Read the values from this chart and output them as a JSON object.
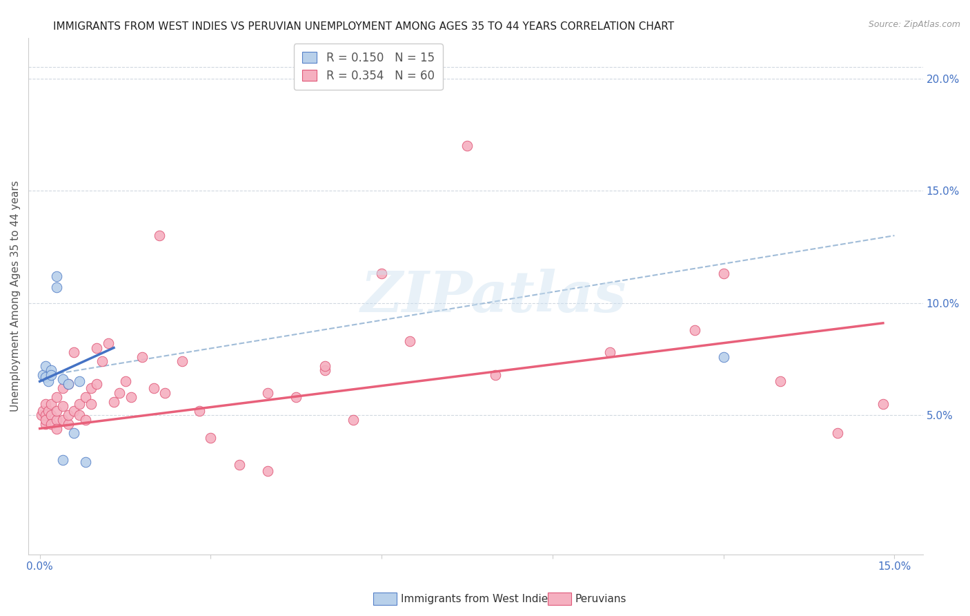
{
  "title": "IMMIGRANTS FROM WEST INDIES VS PERUVIAN UNEMPLOYMENT AMONG AGES 35 TO 44 YEARS CORRELATION CHART",
  "source": "Source: ZipAtlas.com",
  "ylabel": "Unemployment Among Ages 35 to 44 years",
  "ytick_labels": [
    "5.0%",
    "10.0%",
    "15.0%",
    "20.0%"
  ],
  "ytick_vals": [
    0.05,
    0.1,
    0.15,
    0.2
  ],
  "xlim": [
    -0.002,
    0.155
  ],
  "ylim": [
    -0.012,
    0.218
  ],
  "legend_r1": "R = 0.150",
  "legend_n1": "N = 15",
  "legend_r2": "R = 0.354",
  "legend_n2": "N = 60",
  "blue_face": "#b8d0ea",
  "blue_edge": "#5580c8",
  "pink_face": "#f5b0c0",
  "pink_edge": "#e05878",
  "blue_line_color": "#4472c4",
  "pink_line_color": "#e8607a",
  "dash_line_color": "#a0bcd8",
  "west_indies_x": [
    0.0005,
    0.001,
    0.001,
    0.0015,
    0.002,
    0.002,
    0.003,
    0.003,
    0.004,
    0.004,
    0.005,
    0.006,
    0.007,
    0.008,
    0.12
  ],
  "west_indies_y": [
    0.068,
    0.072,
    0.067,
    0.065,
    0.07,
    0.068,
    0.112,
    0.107,
    0.066,
    0.03,
    0.064,
    0.042,
    0.065,
    0.029,
    0.076
  ],
  "peruvians_x": [
    0.0003,
    0.0005,
    0.001,
    0.001,
    0.001,
    0.001,
    0.0015,
    0.002,
    0.002,
    0.002,
    0.003,
    0.003,
    0.003,
    0.003,
    0.004,
    0.004,
    0.004,
    0.005,
    0.005,
    0.005,
    0.006,
    0.006,
    0.007,
    0.007,
    0.008,
    0.008,
    0.009,
    0.009,
    0.01,
    0.01,
    0.011,
    0.012,
    0.013,
    0.014,
    0.015,
    0.016,
    0.018,
    0.02,
    0.021,
    0.022,
    0.025,
    0.028,
    0.03,
    0.035,
    0.04,
    0.045,
    0.05,
    0.055,
    0.06,
    0.065,
    0.075,
    0.08,
    0.1,
    0.115,
    0.12,
    0.13,
    0.14,
    0.148,
    0.04,
    0.05
  ],
  "peruvians_y": [
    0.05,
    0.052,
    0.055,
    0.046,
    0.05,
    0.048,
    0.052,
    0.05,
    0.055,
    0.046,
    0.048,
    0.052,
    0.058,
    0.044,
    0.048,
    0.054,
    0.062,
    0.046,
    0.05,
    0.064,
    0.052,
    0.078,
    0.05,
    0.055,
    0.048,
    0.058,
    0.055,
    0.062,
    0.064,
    0.08,
    0.074,
    0.082,
    0.056,
    0.06,
    0.065,
    0.058,
    0.076,
    0.062,
    0.13,
    0.06,
    0.074,
    0.052,
    0.04,
    0.028,
    0.025,
    0.058,
    0.07,
    0.048,
    0.113,
    0.083,
    0.17,
    0.068,
    0.078,
    0.088,
    0.113,
    0.065,
    0.042,
    0.055,
    0.06,
    0.072
  ],
  "watermark": "ZIPatlas",
  "blue_trend": [
    0.0,
    0.065,
    0.013,
    0.08
  ],
  "pink_trend": [
    0.0,
    0.044,
    0.148,
    0.091
  ],
  "dash_trend": [
    0.002,
    0.068,
    0.15,
    0.13
  ]
}
